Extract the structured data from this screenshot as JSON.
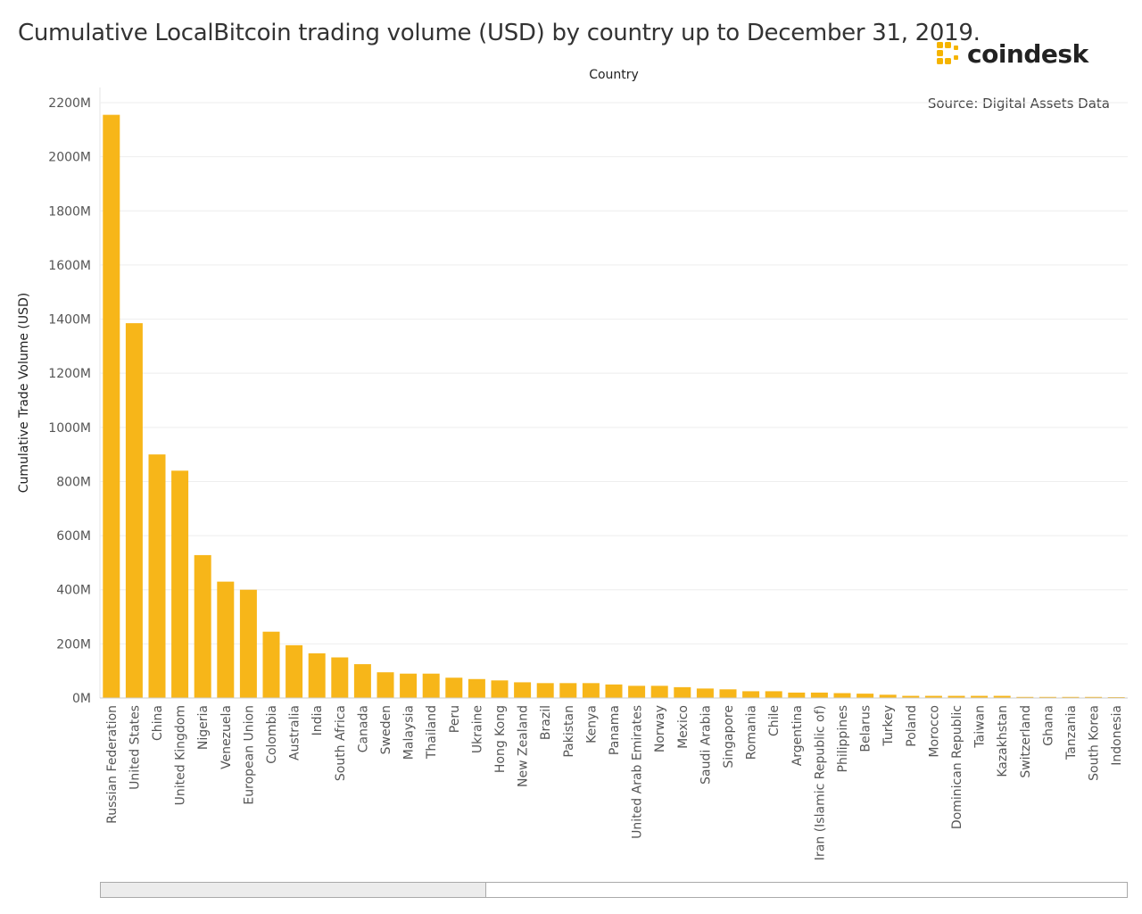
{
  "title": "Cumulative LocalBitcoin trading volume (USD) by country up to December 31, 2019.",
  "logo": {
    "text": "coindesk",
    "color": "#F5B400"
  },
  "source": "Source: Digital Assets Data",
  "colors": {
    "bar": "#F7B619",
    "grid": "#eeeeee",
    "axis": "#666666",
    "text": "#555555"
  },
  "chart_data": {
    "type": "bar",
    "title": "Cumulative LocalBitcoin trading volume (USD) by country up to December 31, 2019.",
    "xlabel": "Country",
    "ylabel": "Cumulative Trade Volume (USD)",
    "ylim": [
      0,
      2200
    ],
    "yunit": "M",
    "yticks": [
      0,
      200,
      400,
      600,
      800,
      1000,
      1200,
      1400,
      1600,
      1800,
      2000,
      2200
    ],
    "ytick_labels": [
      "0M",
      "200M",
      "400M",
      "600M",
      "800M",
      "1000M",
      "1200M",
      "1400M",
      "1600M",
      "1800M",
      "2000M",
      "2200M"
    ],
    "grid": true,
    "categories": [
      "Russian Federation",
      "United States",
      "China",
      "United Kingdom",
      "Nigeria",
      "Venezuela",
      "European Union",
      "Colombia",
      "Australia",
      "India",
      "South Africa",
      "Canada",
      "Sweden",
      "Malaysia",
      "Thailand",
      "Peru",
      "Ukraine",
      "Hong Kong",
      "New Zealand",
      "Brazil",
      "Pakistan",
      "Kenya",
      "Panama",
      "United Arab Emirates",
      "Norway",
      "Mexico",
      "Saudi Arabia",
      "Singapore",
      "Romania",
      "Chile",
      "Argentina",
      "Iran (Islamic Republic of)",
      "Philippines",
      "Belarus",
      "Turkey",
      "Poland",
      "Morocco",
      "Dominican Republic",
      "Taiwan",
      "Kazakhstan",
      "Switzerland",
      "Ghana",
      "Tanzania",
      "South Korea",
      "Indonesia"
    ],
    "values": [
      2155,
      1385,
      900,
      840,
      528,
      430,
      400,
      245,
      195,
      165,
      150,
      125,
      95,
      90,
      90,
      75,
      70,
      65,
      58,
      55,
      55,
      55,
      50,
      45,
      45,
      40,
      35,
      32,
      25,
      25,
      20,
      20,
      18,
      16,
      12,
      8,
      8,
      8,
      8,
      8,
      4,
      4,
      4,
      4,
      2
    ]
  },
  "scrollbar": {
    "position": 0.376
  }
}
